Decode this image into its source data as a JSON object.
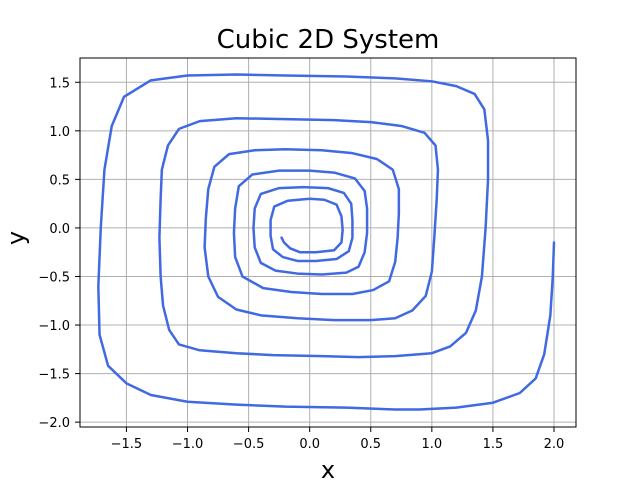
{
  "chart_data": {
    "type": "line",
    "title": "Cubic 2D System",
    "xlabel": "x",
    "ylabel": "y",
    "xlim": [
      -1.88,
      2.18
    ],
    "ylim": [
      -2.05,
      1.75
    ],
    "xticks": [
      -1.5,
      -1.0,
      -0.5,
      0.0,
      0.5,
      1.0,
      1.5,
      2.0
    ],
    "yticks": [
      -2.0,
      -1.5,
      -1.0,
      -0.5,
      0.0,
      0.5,
      1.0,
      1.5
    ],
    "xtick_labels": [
      "−1.5",
      "−1.0",
      "−0.5",
      "0.0",
      "0.5",
      "1.0",
      "1.5",
      "2.0"
    ],
    "ytick_labels": [
      "−2.0",
      "−1.5",
      "−1.0",
      "−0.5",
      "0.0",
      "0.5",
      "1.0",
      "1.5"
    ],
    "grid": true,
    "legend": "none",
    "colors": {
      "line": "#4169E1",
      "grid": "#b0b0b0",
      "axes": "#000000"
    },
    "series": [
      {
        "values": [
          [
            2.0,
            -0.15
          ],
          [
            1.99,
            -0.5
          ],
          [
            1.97,
            -0.9
          ],
          [
            1.92,
            -1.3
          ],
          [
            1.85,
            -1.55
          ],
          [
            1.72,
            -1.7
          ],
          [
            1.5,
            -1.8
          ],
          [
            1.2,
            -1.85
          ],
          [
            0.9,
            -1.87
          ],
          [
            0.7,
            -1.87
          ],
          [
            0.3,
            -1.85
          ],
          [
            -0.2,
            -1.84
          ],
          [
            -0.6,
            -1.82
          ],
          [
            -1.0,
            -1.79
          ],
          [
            -1.3,
            -1.72
          ],
          [
            -1.5,
            -1.6
          ],
          [
            -1.65,
            -1.42
          ],
          [
            -1.72,
            -1.1
          ],
          [
            -1.73,
            -0.6
          ],
          [
            -1.71,
            0.0
          ],
          [
            -1.68,
            0.6
          ],
          [
            -1.62,
            1.05
          ],
          [
            -1.52,
            1.35
          ],
          [
            -1.3,
            1.52
          ],
          [
            -1.0,
            1.57
          ],
          [
            -0.6,
            1.58
          ],
          [
            -0.2,
            1.57
          ],
          [
            0.3,
            1.56
          ],
          [
            0.7,
            1.54
          ],
          [
            1.0,
            1.51
          ],
          [
            1.2,
            1.46
          ],
          [
            1.35,
            1.38
          ],
          [
            1.43,
            1.22
          ],
          [
            1.46,
            0.9
          ],
          [
            1.46,
            0.5
          ],
          [
            1.44,
            0.0
          ],
          [
            1.41,
            -0.5
          ],
          [
            1.36,
            -0.85
          ],
          [
            1.28,
            -1.08
          ],
          [
            1.15,
            -1.22
          ],
          [
            1.0,
            -1.29
          ],
          [
            0.7,
            -1.32
          ],
          [
            0.4,
            -1.33
          ],
          [
            0.1,
            -1.32
          ],
          [
            -0.3,
            -1.31
          ],
          [
            -0.6,
            -1.29
          ],
          [
            -0.9,
            -1.26
          ],
          [
            -1.07,
            -1.2
          ],
          [
            -1.15,
            -1.05
          ],
          [
            -1.2,
            -0.8
          ],
          [
            -1.22,
            -0.5
          ],
          [
            -1.23,
            -0.1
          ],
          [
            -1.22,
            0.3
          ],
          [
            -1.21,
            0.6
          ],
          [
            -1.16,
            0.85
          ],
          [
            -1.07,
            1.02
          ],
          [
            -0.9,
            1.1
          ],
          [
            -0.6,
            1.13
          ],
          [
            -0.2,
            1.12
          ],
          [
            0.2,
            1.11
          ],
          [
            0.5,
            1.09
          ],
          [
            0.75,
            1.05
          ],
          [
            0.94,
            0.98
          ],
          [
            1.03,
            0.85
          ],
          [
            1.05,
            0.6
          ],
          [
            1.04,
            0.3
          ],
          [
            1.02,
            -0.1
          ],
          [
            1.0,
            -0.45
          ],
          [
            0.95,
            -0.7
          ],
          [
            0.84,
            -0.85
          ],
          [
            0.7,
            -0.93
          ],
          [
            0.5,
            -0.95
          ],
          [
            0.2,
            -0.95
          ],
          [
            -0.1,
            -0.93
          ],
          [
            -0.4,
            -0.9
          ],
          [
            -0.6,
            -0.84
          ],
          [
            -0.75,
            -0.71
          ],
          [
            -0.83,
            -0.5
          ],
          [
            -0.86,
            -0.2
          ],
          [
            -0.85,
            0.1
          ],
          [
            -0.83,
            0.4
          ],
          [
            -0.78,
            0.63
          ],
          [
            -0.66,
            0.76
          ],
          [
            -0.45,
            0.8
          ],
          [
            -0.2,
            0.81
          ],
          [
            0.1,
            0.8
          ],
          [
            0.35,
            0.77
          ],
          [
            0.55,
            0.71
          ],
          [
            0.68,
            0.6
          ],
          [
            0.73,
            0.4
          ],
          [
            0.73,
            0.15
          ],
          [
            0.72,
            -0.1
          ],
          [
            0.7,
            -0.35
          ],
          [
            0.65,
            -0.55
          ],
          [
            0.52,
            -0.64
          ],
          [
            0.35,
            -0.68
          ],
          [
            0.1,
            -0.68
          ],
          [
            -0.15,
            -0.66
          ],
          [
            -0.38,
            -0.62
          ],
          [
            -0.55,
            -0.5
          ],
          [
            -0.61,
            -0.3
          ],
          [
            -0.62,
            -0.05
          ],
          [
            -0.61,
            0.2
          ],
          [
            -0.58,
            0.43
          ],
          [
            -0.47,
            0.55
          ],
          [
            -0.25,
            0.59
          ],
          [
            0.0,
            0.59
          ],
          [
            0.2,
            0.57
          ],
          [
            0.37,
            0.51
          ],
          [
            0.45,
            0.38
          ],
          [
            0.47,
            0.2
          ],
          [
            0.47,
            -0.05
          ],
          [
            0.45,
            -0.25
          ],
          [
            0.4,
            -0.4
          ],
          [
            0.3,
            -0.46
          ],
          [
            0.1,
            -0.48
          ],
          [
            -0.1,
            -0.47
          ],
          [
            -0.28,
            -0.44
          ],
          [
            -0.4,
            -0.36
          ],
          [
            -0.45,
            -0.2
          ],
          [
            -0.46,
            0.0
          ],
          [
            -0.45,
            0.2
          ],
          [
            -0.4,
            0.35
          ],
          [
            -0.25,
            0.41
          ],
          [
            -0.05,
            0.42
          ],
          [
            0.15,
            0.41
          ],
          [
            0.28,
            0.36
          ],
          [
            0.34,
            0.25
          ],
          [
            0.35,
            0.08
          ],
          [
            0.35,
            -0.1
          ],
          [
            0.32,
            -0.24
          ],
          [
            0.22,
            -0.32
          ],
          [
            0.05,
            -0.34
          ],
          [
            -0.1,
            -0.34
          ],
          [
            -0.22,
            -0.3
          ],
          [
            -0.3,
            -0.22
          ],
          [
            -0.32,
            -0.08
          ],
          [
            -0.32,
            0.08
          ],
          [
            -0.29,
            0.22
          ],
          [
            -0.18,
            0.28
          ],
          [
            0.0,
            0.3
          ],
          [
            0.12,
            0.29
          ],
          [
            0.22,
            0.24
          ],
          [
            0.26,
            0.12
          ],
          [
            0.27,
            -0.02
          ],
          [
            0.26,
            -0.15
          ],
          [
            0.2,
            -0.23
          ],
          [
            0.05,
            -0.25
          ],
          [
            -0.08,
            -0.25
          ],
          [
            -0.16,
            -0.21
          ],
          [
            -0.21,
            -0.15
          ],
          [
            -0.23,
            -0.1
          ]
        ]
      }
    ]
  }
}
